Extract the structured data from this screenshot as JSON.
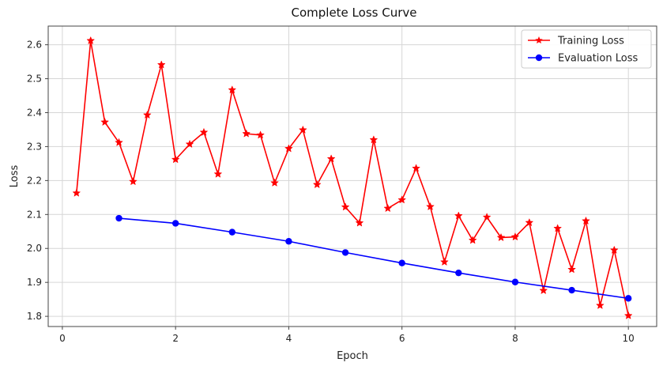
{
  "chart_data": {
    "type": "line",
    "title": "Complete Loss Curve",
    "xlabel": "Epoch",
    "ylabel": "Loss",
    "xlim": [
      -0.25,
      10.5
    ],
    "ylim": [
      1.77,
      2.655
    ],
    "xticks": [
      0,
      2,
      4,
      6,
      8,
      10
    ],
    "yticks": [
      1.8,
      1.9,
      2.0,
      2.1,
      2.2,
      2.3,
      2.4,
      2.5,
      2.6
    ],
    "xtick_labels": [
      "0",
      "2",
      "4",
      "6",
      "8",
      "10"
    ],
    "ytick_labels": [
      "1.8",
      "1.9",
      "2.0",
      "2.1",
      "2.2",
      "2.3",
      "2.4",
      "2.5",
      "2.6"
    ],
    "grid": true,
    "legend_position": "top-right",
    "series": [
      {
        "name": "Training Loss",
        "color": "#ff0000",
        "marker": "star",
        "x": [
          0.25,
          0.5,
          0.75,
          1.0,
          1.25,
          1.5,
          1.75,
          2.0,
          2.25,
          2.5,
          2.75,
          3.0,
          3.25,
          3.5,
          3.75,
          4.0,
          4.25,
          4.5,
          4.75,
          5.0,
          5.25,
          5.5,
          5.75,
          6.0,
          6.25,
          6.5,
          6.75,
          7.0,
          7.25,
          7.5,
          7.75,
          8.0,
          8.25,
          8.5,
          8.75,
          9.0,
          9.25,
          9.5,
          9.75,
          10.0
        ],
        "y": [
          2.163,
          2.612,
          2.372,
          2.312,
          2.197,
          2.393,
          2.541,
          2.262,
          2.307,
          2.342,
          2.219,
          2.467,
          2.338,
          2.334,
          2.193,
          2.294,
          2.349,
          2.188,
          2.264,
          2.122,
          2.075,
          2.32,
          2.118,
          2.143,
          2.236,
          2.123,
          1.96,
          2.096,
          2.024,
          2.092,
          2.032,
          2.034,
          2.076,
          1.876,
          2.059,
          1.938,
          2.081,
          1.832,
          1.995,
          1.802
        ]
      },
      {
        "name": "Evaluation Loss",
        "color": "#0000ff",
        "marker": "circle",
        "x": [
          1,
          2,
          3,
          4,
          5,
          6,
          7,
          8,
          9,
          10
        ],
        "y": [
          2.089,
          2.074,
          2.048,
          2.021,
          1.988,
          1.957,
          1.928,
          1.901,
          1.877,
          1.853
        ]
      }
    ]
  }
}
